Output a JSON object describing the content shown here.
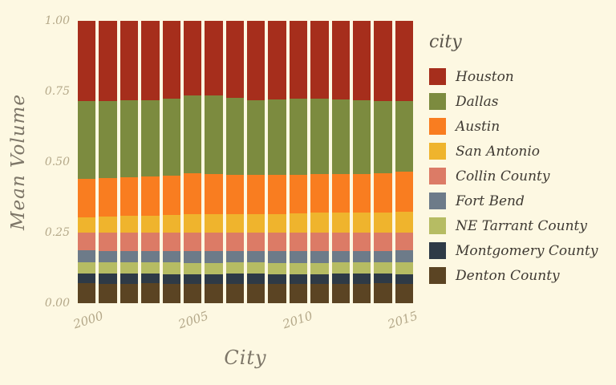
{
  "page": {
    "background": "#fdf8e2"
  },
  "chart_data": {
    "type": "bar",
    "stacked": true,
    "normalized": true,
    "title": "",
    "xlabel": "City",
    "ylabel": "Mean Volume",
    "legend_title": "city",
    "legend_position": "right",
    "grid": false,
    "ylim": [
      0,
      1
    ],
    "categories": [
      2000,
      2001,
      2002,
      2003,
      2004,
      2005,
      2006,
      2007,
      2008,
      2009,
      2010,
      2011,
      2012,
      2013,
      2014,
      2015
    ],
    "x_ticks": [
      {
        "index": 0,
        "label": "2000"
      },
      {
        "index": 5,
        "label": "2005"
      },
      {
        "index": 10,
        "label": "2010"
      },
      {
        "index": 15,
        "label": "2015"
      }
    ],
    "y_ticks": [
      {
        "value": 0.0,
        "label": "0.00"
      },
      {
        "value": 0.25,
        "label": "0.25"
      },
      {
        "value": 0.5,
        "label": "0.50"
      },
      {
        "value": 0.75,
        "label": "0.75"
      },
      {
        "value": 1.0,
        "label": "1.00"
      }
    ],
    "series": [
      {
        "name": "Houston",
        "color": "#a62e1c",
        "values": [
          0.285,
          0.284,
          0.282,
          0.28,
          0.275,
          0.265,
          0.265,
          0.272,
          0.28,
          0.277,
          0.275,
          0.275,
          0.277,
          0.28,
          0.285,
          0.285
        ]
      },
      {
        "name": "Dallas",
        "color": "#7c8b3f",
        "values": [
          0.275,
          0.272,
          0.271,
          0.272,
          0.273,
          0.275,
          0.277,
          0.272,
          0.265,
          0.267,
          0.269,
          0.268,
          0.266,
          0.262,
          0.255,
          0.25
        ]
      },
      {
        "name": "Austin",
        "color": "#f97d20",
        "values": [
          0.135,
          0.136,
          0.137,
          0.138,
          0.14,
          0.145,
          0.143,
          0.141,
          0.14,
          0.14,
          0.138,
          0.137,
          0.137,
          0.138,
          0.138,
          0.14
        ]
      },
      {
        "name": "San Antonio",
        "color": "#efb42d",
        "values": [
          0.055,
          0.058,
          0.06,
          0.061,
          0.062,
          0.065,
          0.066,
          0.065,
          0.065,
          0.066,
          0.068,
          0.07,
          0.07,
          0.07,
          0.072,
          0.075
        ]
      },
      {
        "name": "Collin County",
        "color": "#dc7b66",
        "values": [
          0.063,
          0.064,
          0.064,
          0.063,
          0.065,
          0.065,
          0.064,
          0.064,
          0.064,
          0.066,
          0.066,
          0.066,
          0.064,
          0.064,
          0.064,
          0.063
        ]
      },
      {
        "name": "Fort Bend",
        "color": "#6d7b89",
        "values": [
          0.042,
          0.041,
          0.042,
          0.042,
          0.041,
          0.042,
          0.042,
          0.041,
          0.042,
          0.042,
          0.041,
          0.042,
          0.042,
          0.041,
          0.042,
          0.042
        ]
      },
      {
        "name": "NE Tarrant County",
        "color": "#b6bc63",
        "values": [
          0.04,
          0.041,
          0.04,
          0.04,
          0.041,
          0.04,
          0.04,
          0.041,
          0.04,
          0.04,
          0.041,
          0.04,
          0.04,
          0.041,
          0.04,
          0.042
        ]
      },
      {
        "name": "Montgomery County",
        "color": "#2e3a46",
        "values": [
          0.035,
          0.036,
          0.035,
          0.034,
          0.035,
          0.036,
          0.035,
          0.035,
          0.036,
          0.035,
          0.034,
          0.035,
          0.036,
          0.035,
          0.034,
          0.035
        ]
      },
      {
        "name": "Denton County",
        "color": "#5b4423",
        "values": [
          0.07,
          0.068,
          0.069,
          0.07,
          0.068,
          0.067,
          0.068,
          0.069,
          0.068,
          0.067,
          0.068,
          0.067,
          0.068,
          0.069,
          0.07,
          0.068
        ]
      }
    ]
  }
}
